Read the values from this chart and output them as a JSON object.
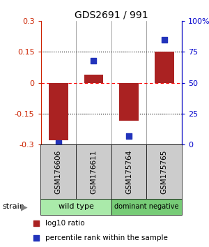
{
  "title": "GDS2691 / 991",
  "samples": [
    "GSM176606",
    "GSM176611",
    "GSM175764",
    "GSM175765"
  ],
  "log10_ratio": [
    -0.28,
    0.04,
    -0.185,
    0.15
  ],
  "percentile_rank": [
    1,
    68,
    7,
    85
  ],
  "groups": [
    {
      "name": "wild type",
      "samples": [
        0,
        1
      ],
      "color": "#aaeaaa"
    },
    {
      "name": "dominant negative",
      "samples": [
        2,
        3
      ],
      "color": "#77cc77"
    }
  ],
  "group_label": "strain",
  "ylim_left": [
    -0.3,
    0.3
  ],
  "ylim_right": [
    0,
    100
  ],
  "yticks_left": [
    -0.3,
    -0.15,
    0,
    0.15,
    0.3
  ],
  "yticks_right": [
    0,
    25,
    50,
    75,
    100
  ],
  "ytick_labels_right": [
    "0",
    "25",
    "50",
    "75",
    "100%"
  ],
  "bar_color": "#aa2222",
  "dot_color": "#2233bb",
  "bar_width": 0.55,
  "dot_size": 35,
  "legend_bar_label": "log10 ratio",
  "legend_dot_label": "percentile rank within the sample",
  "left_tick_color": "#cc2200",
  "right_tick_color": "#0000cc",
  "sample_box_color": "#cccccc",
  "figsize": [
    3.0,
    3.54
  ],
  "dpi": 100
}
